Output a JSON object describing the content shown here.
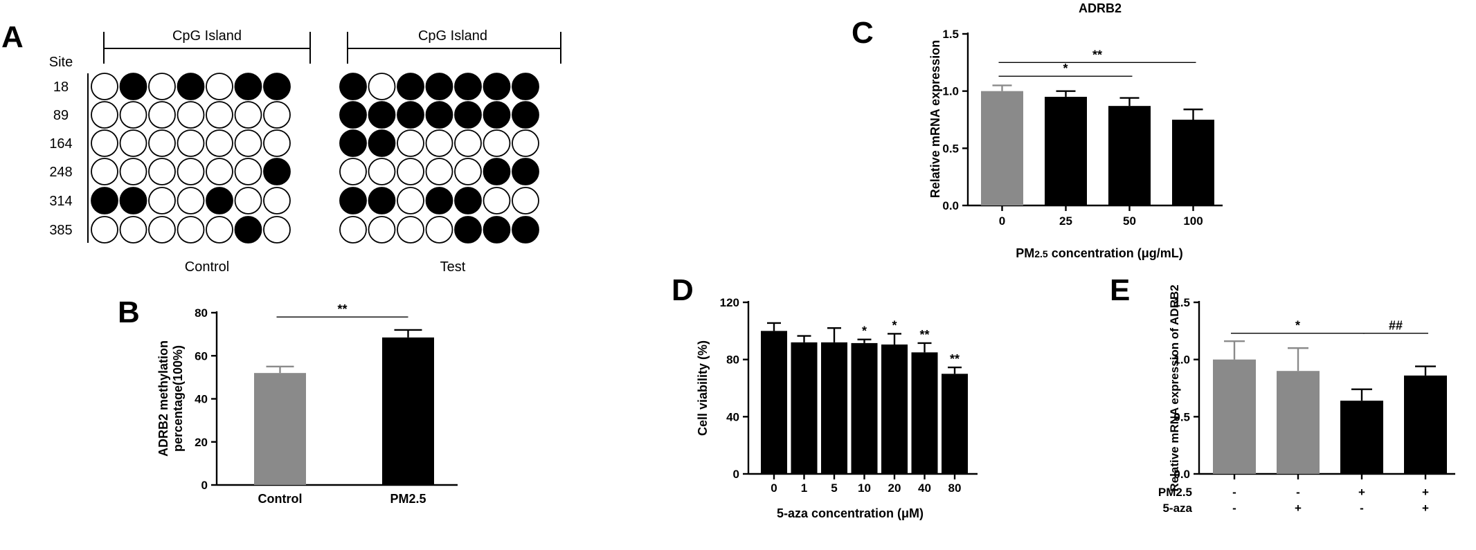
{
  "panel_labels": {
    "a": "A",
    "b": "B",
    "c": "C",
    "d": "D",
    "e": "E"
  },
  "colors": {
    "gray": "#8a8a8a",
    "black": "#000000"
  },
  "chart_data": [
    {
      "panel": "A",
      "type": "table",
      "row_header": "Site",
      "sites": [
        "18",
        "89",
        "164",
        "248",
        "314",
        "385"
      ],
      "groups": [
        {
          "header": "CpG Island",
          "label": "Control",
          "methylated": [
            [
              0,
              1,
              0,
              1,
              0,
              1,
              1
            ],
            [
              0,
              0,
              0,
              0,
              0,
              0,
              0
            ],
            [
              0,
              0,
              0,
              0,
              0,
              0,
              0
            ],
            [
              0,
              0,
              0,
              0,
              0,
              0,
              1
            ],
            [
              1,
              1,
              0,
              0,
              1,
              0,
              0
            ],
            [
              0,
              0,
              0,
              0,
              0,
              1,
              0
            ]
          ]
        },
        {
          "header": "CpG Island",
          "label": "Test",
          "methylated": [
            [
              1,
              0,
              1,
              1,
              1,
              1,
              1
            ],
            [
              1,
              1,
              1,
              1,
              1,
              1,
              1
            ],
            [
              1,
              1,
              0,
              0,
              0,
              0,
              0
            ],
            [
              0,
              0,
              0,
              0,
              0,
              1,
              1
            ],
            [
              1,
              1,
              0,
              1,
              1,
              0,
              0
            ],
            [
              0,
              0,
              0,
              0,
              1,
              1,
              1
            ]
          ]
        }
      ]
    },
    {
      "panel": "B",
      "type": "bar",
      "categories": [
        "Control",
        "PM2.5"
      ],
      "values": [
        52,
        68.5
      ],
      "errors": [
        3,
        3.5
      ],
      "colors": [
        "#8a8a8a",
        "#000000"
      ],
      "ylabel_lines": [
        "ADRB2 methylation",
        "percentage(100%)"
      ],
      "ylim": [
        0,
        80
      ],
      "yticks": [
        "0",
        "20",
        "40",
        "60",
        "80"
      ],
      "significance": [
        {
          "from": 0,
          "to": 1,
          "label": "**",
          "y": 78
        }
      ]
    },
    {
      "panel": "C",
      "type": "bar",
      "title": "ADRB2",
      "categories": [
        "0",
        "25",
        "50",
        "100"
      ],
      "values": [
        1.0,
        0.95,
        0.87,
        0.75
      ],
      "errors": [
        0.05,
        0.05,
        0.07,
        0.09
      ],
      "colors": [
        "#8a8a8a",
        "#000000",
        "#000000",
        "#000000"
      ],
      "xlabel_main": "PM",
      "xlabel_sub": "2.5",
      "xlabel_rest": " concentration (μg/mL)",
      "ylabel": "Relative mRNA expression",
      "ylim": [
        0,
        1.5
      ],
      "yticks": [
        "0.0",
        "0.5",
        "1.0",
        "1.5"
      ],
      "significance": [
        {
          "from": 0,
          "to": 2,
          "label": "*",
          "y": 1.13
        },
        {
          "from": 0,
          "to": 3,
          "label": "**",
          "y": 1.25
        }
      ]
    },
    {
      "panel": "D",
      "type": "bar",
      "categories": [
        "0",
        "1",
        "5",
        "10",
        "20",
        "40",
        "80"
      ],
      "values": [
        100,
        92,
        92,
        91.5,
        90.5,
        85,
        70
      ],
      "errors": [
        5.5,
        4.5,
        10,
        2.5,
        7.5,
        6.5,
        4.5
      ],
      "colors": [
        "#000000",
        "#000000",
        "#000000",
        "#000000",
        "#000000",
        "#000000",
        "#000000"
      ],
      "xlabel": "5-aza concentration (μM)",
      "ylabel": "Cell viability (%)",
      "ylim": [
        0,
        120
      ],
      "yticks": [
        "0",
        "40",
        "80",
        "120"
      ],
      "bar_labels": [
        "",
        "",
        "",
        "*",
        "*",
        "**",
        "**"
      ]
    },
    {
      "panel": "E",
      "type": "bar",
      "categories": [
        "",
        "",
        "",
        ""
      ],
      "values": [
        1.0,
        0.9,
        0.64,
        0.86
      ],
      "errors": [
        0.16,
        0.2,
        0.1,
        0.08
      ],
      "colors": [
        "#8a8a8a",
        "#8a8a8a",
        "#000000",
        "#000000"
      ],
      "ylabel": "Relative mRNA expression of ADRB2",
      "ylim": [
        0,
        1.5
      ],
      "yticks": [
        "0.0",
        "0.5",
        "1.0",
        "1.5"
      ],
      "treatments": [
        {
          "name": "PM2.5",
          "values": [
            "-",
            "-",
            "+",
            "+"
          ]
        },
        {
          "name": "5-aza",
          "values": [
            "-",
            "+",
            "-",
            "+"
          ]
        }
      ],
      "significance": [
        {
          "from": 0,
          "to": 2,
          "label": "*",
          "y": 1.23
        },
        {
          "from": 2,
          "to": 3,
          "label": "##",
          "y": 1.23
        }
      ]
    }
  ]
}
